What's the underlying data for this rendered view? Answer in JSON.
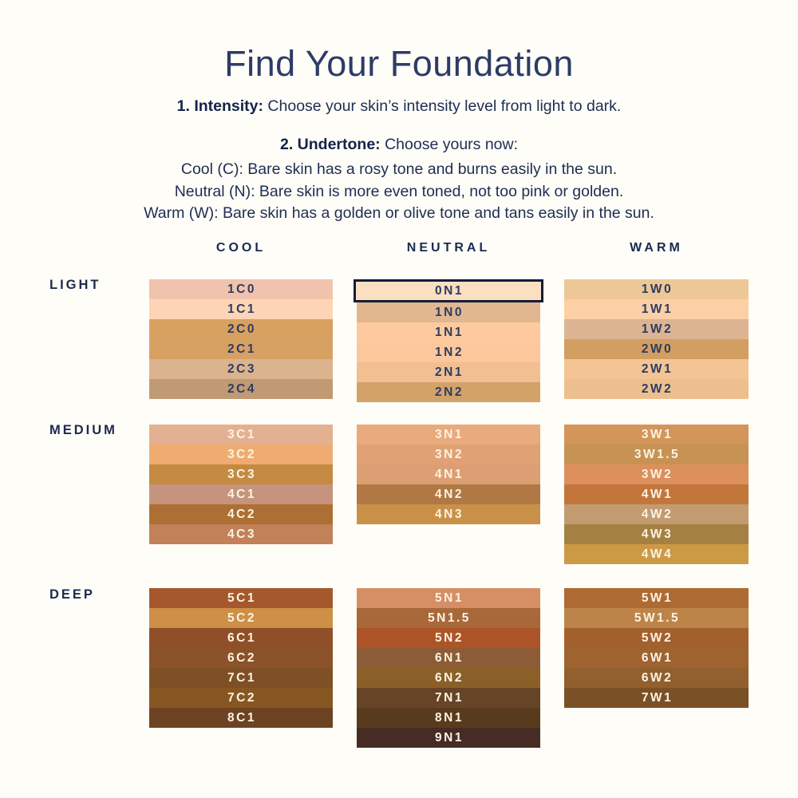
{
  "page": {
    "background": "#fffdf8",
    "navy": "#1b2a4e",
    "selected_border": "#131c3a"
  },
  "header": {
    "title": "Find Your Foundation"
  },
  "steps": {
    "step1_label": "1. Intensity:",
    "step1_text": " Choose your skin’s intensity level from light to dark.",
    "step2_label": "2. Undertone:",
    "step2_text": " Choose yours now:",
    "undertone_lines": [
      "Cool (C): Bare skin has a rosy tone and burns easily in the sun.",
      "Neutral (N): Bare skin is more even toned, not too pink or golden.",
      "Warm (W): Bare skin has a golden or olive tone and tans easily in the sun."
    ]
  },
  "columns": [
    {
      "key": "cool",
      "label": "COOL"
    },
    {
      "key": "neutral",
      "label": "NEUTRAL"
    },
    {
      "key": "warm",
      "label": "WARM"
    }
  ],
  "groups": [
    {
      "key": "light",
      "label": "LIGHT",
      "label_theme": "dark",
      "shades": {
        "cool": [
          {
            "code": "1C0",
            "color": "#f1c3ad"
          },
          {
            "code": "1C1",
            "color": "#fdd5b5"
          },
          {
            "code": "2C0",
            "color": "#d8a160"
          },
          {
            "code": "2C1",
            "color": "#d7a164"
          },
          {
            "code": "2C3",
            "color": "#dcb38f"
          },
          {
            "code": "2C4",
            "color": "#c09a73"
          }
        ],
        "neutral": [
          {
            "code": "0N1",
            "color": "#fadfc0",
            "selected": true
          },
          {
            "code": "1N0",
            "color": "#e0b78f"
          },
          {
            "code": "1N1",
            "color": "#fdca9f"
          },
          {
            "code": "1N2",
            "color": "#fcc79b"
          },
          {
            "code": "2N1",
            "color": "#f2bf92"
          },
          {
            "code": "2N2",
            "color": "#d2a269"
          }
        ],
        "warm": [
          {
            "code": "1W0",
            "color": "#edc795"
          },
          {
            "code": "1W1",
            "color": "#fdcfa4"
          },
          {
            "code": "1W2",
            "color": "#ddb492"
          },
          {
            "code": "2W0",
            "color": "#d29e62"
          },
          {
            "code": "2W1",
            "color": "#f4c494"
          },
          {
            "code": "2W2",
            "color": "#edbf8e"
          }
        ]
      }
    },
    {
      "key": "medium",
      "label": "MEDIUM",
      "label_theme": "cream",
      "shades": {
        "cool": [
          {
            "code": "3C1",
            "color": "#e3b192"
          },
          {
            "code": "3C2",
            "color": "#f0ab70"
          },
          {
            "code": "3C3",
            "color": "#c58a41"
          },
          {
            "code": "4C1",
            "color": "#c6947d"
          },
          {
            "code": "4C2",
            "color": "#ad6f33"
          },
          {
            "code": "4C3",
            "color": "#c28158"
          }
        ],
        "neutral": [
          {
            "code": "3N1",
            "color": "#e9aa7c"
          },
          {
            "code": "3N2",
            "color": "#e0a274"
          },
          {
            "code": "4N1",
            "color": "#dc9f74"
          },
          {
            "code": "4N2",
            "color": "#b07845"
          },
          {
            "code": "4N3",
            "color": "#c99148"
          }
        ],
        "warm": [
          {
            "code": "3W1",
            "color": "#d4955a"
          },
          {
            "code": "3W1.5",
            "color": "#c79354"
          },
          {
            "code": "3W2",
            "color": "#dd8f5c"
          },
          {
            "code": "4W1",
            "color": "#c2763c"
          },
          {
            "code": "4W2",
            "color": "#c29b70"
          },
          {
            "code": "4W3",
            "color": "#a48142"
          },
          {
            "code": "4W4",
            "color": "#cc9a44"
          }
        ]
      }
    },
    {
      "key": "deep",
      "label": "DEEP",
      "label_theme": "cream",
      "shades": {
        "cool": [
          {
            "code": "5C1",
            "color": "#a4582b"
          },
          {
            "code": "5C2",
            "color": "#ce8f46"
          },
          {
            "code": "6C1",
            "color": "#8f4f28"
          },
          {
            "code": "6C2",
            "color": "#8c5229"
          },
          {
            "code": "7C1",
            "color": "#7f5026"
          },
          {
            "code": "7C2",
            "color": "#875722"
          },
          {
            "code": "8C1",
            "color": "#6d4323"
          }
        ],
        "neutral": [
          {
            "code": "5N1",
            "color": "#d68e64"
          },
          {
            "code": "5N1.5",
            "color": "#a8683a"
          },
          {
            "code": "5N2",
            "color": "#ad5529"
          },
          {
            "code": "6N1",
            "color": "#8d5c36"
          },
          {
            "code": "6N2",
            "color": "#8a6028"
          },
          {
            "code": "7N1",
            "color": "#674426"
          },
          {
            "code": "8N1",
            "color": "#583a1c"
          },
          {
            "code": "9N1",
            "color": "#462c24"
          }
        ],
        "warm": [
          {
            "code": "5W1",
            "color": "#ad6a33"
          },
          {
            "code": "5W1.5",
            "color": "#bd8449"
          },
          {
            "code": "5W2",
            "color": "#a2612c"
          },
          {
            "code": "6W1",
            "color": "#9e632f"
          },
          {
            "code": "6W2",
            "color": "#925f2e"
          },
          {
            "code": "7W1",
            "color": "#7a5126"
          }
        ]
      }
    }
  ]
}
